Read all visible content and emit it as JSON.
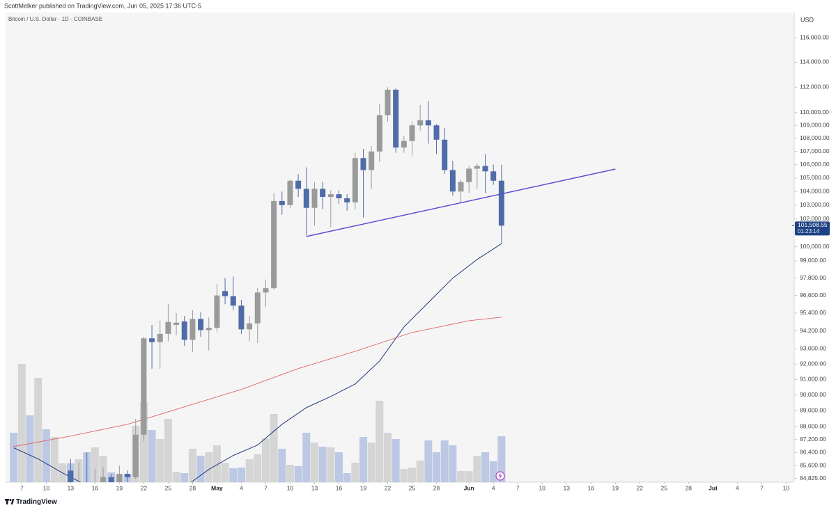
{
  "chart_data": {
    "type": "candlestick",
    "title": "ScottMelker published on TradingView.com, Jun 05, 2025 17:36 UTC-5",
    "subtitle": "Bitcoin / U.S. Dollar · 1D · COINBASE",
    "currency": "USD",
    "brand": "TradingView",
    "log_scale": true,
    "grid": false,
    "up_color": "#9a9a9a",
    "down_color": "#4f6ba8",
    "x": [
      "2025-04-13",
      "2025-04-14",
      "2025-04-15",
      "2025-04-16",
      "2025-04-17",
      "2025-04-18",
      "2025-04-19",
      "2025-04-20",
      "2025-04-21",
      "2025-04-22",
      "2025-04-23",
      "2025-04-24",
      "2025-04-25",
      "2025-04-26",
      "2025-04-27",
      "2025-04-28",
      "2025-04-29",
      "2025-04-30",
      "2025-05-01",
      "2025-05-02",
      "2025-05-03",
      "2025-05-04",
      "2025-05-05",
      "2025-05-06",
      "2025-05-07",
      "2025-05-08",
      "2025-05-09",
      "2025-05-10",
      "2025-05-11",
      "2025-05-12",
      "2025-05-13",
      "2025-05-14",
      "2025-05-15",
      "2025-05-16",
      "2025-05-17",
      "2025-05-18",
      "2025-05-19",
      "2025-05-20",
      "2025-05-21",
      "2025-05-22",
      "2025-05-23",
      "2025-05-24",
      "2025-05-25",
      "2025-05-26",
      "2025-05-27",
      "2025-05-28",
      "2025-05-29",
      "2025-05-30",
      "2025-05-31",
      "2025-06-01",
      "2025-06-02",
      "2025-06-03",
      "2025-06-04",
      "2025-06-05"
    ],
    "open": [
      85300,
      83700,
      84600,
      83700,
      84100,
      84900,
      84500,
      85100,
      84900,
      87500,
      93700,
      93450,
      94000,
      94600,
      94830,
      93600,
      95000,
      94250,
      94400,
      96900,
      96550,
      95900,
      94300,
      94700,
      96800,
      97100,
      103300,
      103000,
      104800,
      104200,
      102800,
      104200,
      103600,
      103800,
      103500,
      103200,
      106500,
      105600,
      107000,
      109800,
      111800,
      107300,
      107800,
      109000,
      109400,
      109000,
      107900,
      105600,
      104000,
      104700,
      105700,
      105900,
      105500,
      104800
    ],
    "high": [
      86000,
      85800,
      86400,
      85400,
      85500,
      85100,
      85600,
      85300,
      88500,
      93800,
      94600,
      94900,
      96000,
      95400,
      95200,
      95600,
      95450,
      95100,
      97400,
      97800,
      97900,
      96300,
      95200,
      97100,
      97700,
      103900,
      104000,
      104900,
      105300,
      105800,
      104700,
      104700,
      104100,
      104100,
      103800,
      106900,
      107200,
      107400,
      110700,
      112000,
      111900,
      108200,
      109300,
      110600,
      110900,
      109100,
      108800,
      106300,
      104900,
      105900,
      106100,
      106800,
      106000,
      106000
    ],
    "low": [
      83100,
      83200,
      83600,
      83100,
      83700,
      84300,
      84400,
      83900,
      84800,
      87100,
      91700,
      91700,
      93500,
      93900,
      93200,
      92800,
      93800,
      92900,
      94100,
      96000,
      95600,
      94000,
      93500,
      93400,
      95800,
      97000,
      102300,
      102800,
      103600,
      100800,
      101500,
      102700,
      101400,
      103100,
      102600,
      102700,
      102100,
      104200,
      106200,
      109300,
      106900,
      106900,
      106700,
      108600,
      107600,
      106800,
      105300,
      103700,
      103200,
      103900,
      104200,
      103900,
      104500,
      100200
    ],
    "close": [
      83700,
      84600,
      83700,
      84100,
      84900,
      84500,
      85100,
      84900,
      87500,
      93700,
      93450,
      94000,
      94800,
      94750,
      93600,
      95000,
      94250,
      94400,
      96600,
      96550,
      95900,
      94300,
      94700,
      96800,
      97100,
      103300,
      103000,
      104800,
      104200,
      102800,
      104200,
      103600,
      103800,
      103500,
      103200,
      106500,
      105600,
      107000,
      109800,
      111800,
      107300,
      107800,
      109000,
      109400,
      109000,
      107900,
      105600,
      104000,
      104700,
      105700,
      105900,
      105500,
      104800,
      101508.55
    ],
    "volume": {
      "x": [
        "2025-04-06",
        "2025-04-07",
        "2025-04-08",
        "2025-04-09",
        "2025-04-10",
        "2025-04-11",
        "2025-04-12",
        "2025-04-13",
        "2025-04-14",
        "2025-04-15",
        "2025-04-16",
        "2025-04-17",
        "2025-04-18",
        "2025-04-19",
        "2025-04-20",
        "2025-04-21",
        "2025-04-22",
        "2025-04-23",
        "2025-04-24",
        "2025-04-25",
        "2025-04-26",
        "2025-04-27",
        "2025-04-28",
        "2025-04-29",
        "2025-04-30",
        "2025-05-01",
        "2025-05-02",
        "2025-05-03",
        "2025-05-04",
        "2025-05-05",
        "2025-05-06",
        "2025-05-07",
        "2025-05-08",
        "2025-05-09",
        "2025-05-10",
        "2025-05-11",
        "2025-05-12",
        "2025-05-13",
        "2025-05-14",
        "2025-05-15",
        "2025-05-16",
        "2025-05-17",
        "2025-05-18",
        "2025-05-19",
        "2025-05-20",
        "2025-05-21",
        "2025-05-22",
        "2025-05-23",
        "2025-05-24",
        "2025-05-25",
        "2025-05-26",
        "2025-05-27",
        "2025-05-28",
        "2025-05-29",
        "2025-05-30",
        "2025-05-31",
        "2025-06-01",
        "2025-06-02",
        "2025-06-03",
        "2025-06-04",
        "2025-06-05"
      ],
      "values": [
        17750,
        42500,
        24000,
        37500,
        19000,
        16250,
        6750,
        6750,
        8250,
        10750,
        12500,
        9500,
        3500,
        2500,
        3000,
        20250,
        28750,
        18750,
        15500,
        22750,
        3750,
        3250,
        12000,
        9500,
        10750,
        13250,
        7000,
        5000,
        5250,
        8250,
        10000,
        15750,
        24500,
        12000,
        6250,
        5750,
        17750,
        14250,
        12750,
        12500,
        10750,
        3250,
        7000,
        16250,
        14250,
        29250,
        17750,
        15500,
        4750,
        5250,
        7750,
        15000,
        10750,
        15000,
        13250,
        4000,
        4000,
        9500,
        10750,
        7500,
        16500
      ],
      "colors": [
        "#bcc8e4",
        "#d5d5d5",
        "#bcc8e4",
        "#d5d5d5",
        "#bcc8e4",
        "#d5d5d5",
        "#d5d5d5",
        "#bcc8e4",
        "#d5d5d5",
        "#bcc8e4",
        "#d5d5d5",
        "#d5d5d5",
        "#bcc8e4",
        "#d5d5d5",
        "#bcc8e4",
        "#d5d5d5",
        "#d5d5d5",
        "#bcc8e4",
        "#d5d5d5",
        "#d5d5d5",
        "#d5d5d5",
        "#bcc8e4",
        "#d5d5d5",
        "#bcc8e4",
        "#d5d5d5",
        "#d5d5d5",
        "#d5d5d5",
        "#bcc8e4",
        "#bcc8e4",
        "#d5d5d5",
        "#d5d5d5",
        "#d5d5d5",
        "#d5d5d5",
        "#bcc8e4",
        "#d5d5d5",
        "#bcc8e4",
        "#bcc8e4",
        "#d5d5d5",
        "#bcc8e4",
        "#d5d5d5",
        "#bcc8e4",
        "#bcc8e4",
        "#d5d5d5",
        "#bcc8e4",
        "#d5d5d5",
        "#d5d5d5",
        "#d5d5d5",
        "#bcc8e4",
        "#d5d5d5",
        "#d5d5d5",
        "#d5d5d5",
        "#bcc8e4",
        "#bcc8e4",
        "#bcc8e4",
        "#bcc8e4",
        "#d5d5d5",
        "#d5d5d5",
        "#d5d5d5",
        "#bcc8e4",
        "#bcc8e4",
        "#bcc8e4"
      ]
    },
    "moving_averages": [
      {
        "color": "#1f3a7a",
        "x": [
          "2025-04-06",
          "2025-04-09",
          "2025-04-12",
          "2025-04-15",
          "2025-04-21",
          "2025-04-27",
          "2025-04-30",
          "2025-05-03",
          "2025-05-06",
          "2025-05-09",
          "2025-05-12",
          "2025-05-15",
          "2025-05-18",
          "2025-05-21",
          "2025-05-24",
          "2025-05-27",
          "2025-05-30",
          "2025-06-02",
          "2025-06-05"
        ],
        "values": [
          86690,
          86010,
          85160,
          84400,
          83600,
          84300,
          85370,
          86220,
          86860,
          88150,
          89200,
          89910,
          90710,
          92200,
          94460,
          96110,
          97790,
          99100,
          100220
        ]
      },
      {
        "color": "#e06466",
        "x": [
          "2025-04-06",
          "2025-04-13",
          "2025-04-20",
          "2025-04-27",
          "2025-05-04",
          "2025-05-11",
          "2025-05-18",
          "2025-05-25",
          "2025-06-01",
          "2025-06-05"
        ],
        "values": [
          86770,
          87420,
          88150,
          89250,
          90360,
          91710,
          92840,
          94090,
          94880,
          95120
        ]
      }
    ],
    "trendline": {
      "color": "#5b4fd3",
      "x": [
        "2025-05-12",
        "2025-06-19"
      ],
      "values": [
        100730,
        105670
      ]
    },
    "price_label": {
      "value": 101508.55,
      "label": "101,508.55",
      "countdown": "01:23:14",
      "color": "#1e4283"
    },
    "xlim": [
      "2025-04-05",
      "2025-07-11"
    ],
    "xticks": [
      {
        "value": "2025-04-07",
        "label": "7"
      },
      {
        "value": "2025-04-10",
        "label": "10"
      },
      {
        "value": "2025-04-13",
        "label": "13"
      },
      {
        "value": "2025-04-16",
        "label": "16"
      },
      {
        "value": "2025-04-19",
        "label": "19"
      },
      {
        "value": "2025-04-22",
        "label": "22"
      },
      {
        "value": "2025-04-25",
        "label": "25"
      },
      {
        "value": "2025-04-28",
        "label": "28"
      },
      {
        "value": "2025-05-01",
        "label": "May"
      },
      {
        "value": "2025-05-04",
        "label": "4"
      },
      {
        "value": "2025-05-07",
        "label": "7"
      },
      {
        "value": "2025-05-10",
        "label": "10"
      },
      {
        "value": "2025-05-13",
        "label": "13"
      },
      {
        "value": "2025-05-16",
        "label": "16"
      },
      {
        "value": "2025-05-19",
        "label": "19"
      },
      {
        "value": "2025-05-22",
        "label": "22"
      },
      {
        "value": "2025-05-25",
        "label": "25"
      },
      {
        "value": "2025-05-28",
        "label": "28"
      },
      {
        "value": "2025-06-01",
        "label": "Jun"
      },
      {
        "value": "2025-06-04",
        "label": "4"
      },
      {
        "value": "2025-06-07",
        "label": "7"
      },
      {
        "value": "2025-06-10",
        "label": "10"
      },
      {
        "value": "2025-06-13",
        "label": "13"
      },
      {
        "value": "2025-06-16",
        "label": "16"
      },
      {
        "value": "2025-06-19",
        "label": "19"
      },
      {
        "value": "2025-06-22",
        "label": "22"
      },
      {
        "value": "2025-06-25",
        "label": "25"
      },
      {
        "value": "2025-06-28",
        "label": "28"
      },
      {
        "value": "2025-07-01",
        "label": "Jul"
      },
      {
        "value": "2025-07-04",
        "label": "4"
      },
      {
        "value": "2025-07-07",
        "label": "7"
      },
      {
        "value": "2025-07-10",
        "label": "10"
      }
    ],
    "ylim": [
      84600,
      118100
    ],
    "yticks": [
      {
        "value": 84825,
        "label": "84,825.00"
      },
      {
        "value": 85600,
        "label": "85,600.00"
      },
      {
        "value": 86400,
        "label": "86,400.00"
      },
      {
        "value": 87200,
        "label": "87,200.00"
      },
      {
        "value": 88000,
        "label": "88,000.00"
      },
      {
        "value": 89000,
        "label": "89,000.00"
      },
      {
        "value": 90000,
        "label": "90,000.00"
      },
      {
        "value": 91000,
        "label": "91,000.00"
      },
      {
        "value": 92000,
        "label": "92,000.00"
      },
      {
        "value": 93000,
        "label": "93,000.00"
      },
      {
        "value": 94200,
        "label": "94,200.00"
      },
      {
        "value": 95400,
        "label": "95,400.00"
      },
      {
        "value": 96600,
        "label": "96,600.00"
      },
      {
        "value": 97800,
        "label": "97,800.00"
      },
      {
        "value": 99000,
        "label": "99,000.00"
      },
      {
        "value": 100000,
        "label": "100,000.00"
      },
      {
        "value": 102000,
        "label": "102,000.00"
      },
      {
        "value": 103000,
        "label": "103,000.00"
      },
      {
        "value": 104000,
        "label": "104,000.00"
      },
      {
        "value": 105000,
        "label": "105,000.00"
      },
      {
        "value": 106000,
        "label": "106,000.00"
      },
      {
        "value": 107000,
        "label": "107,000.00"
      },
      {
        "value": 108000,
        "label": "108,000.00"
      },
      {
        "value": 109000,
        "label": "109,000.00"
      },
      {
        "value": 110000,
        "label": "110,000.00"
      },
      {
        "value": 112000,
        "label": "112,000.00"
      },
      {
        "value": 114000,
        "label": "114,000.00"
      },
      {
        "value": 116000,
        "label": "116,000.00"
      }
    ]
  }
}
